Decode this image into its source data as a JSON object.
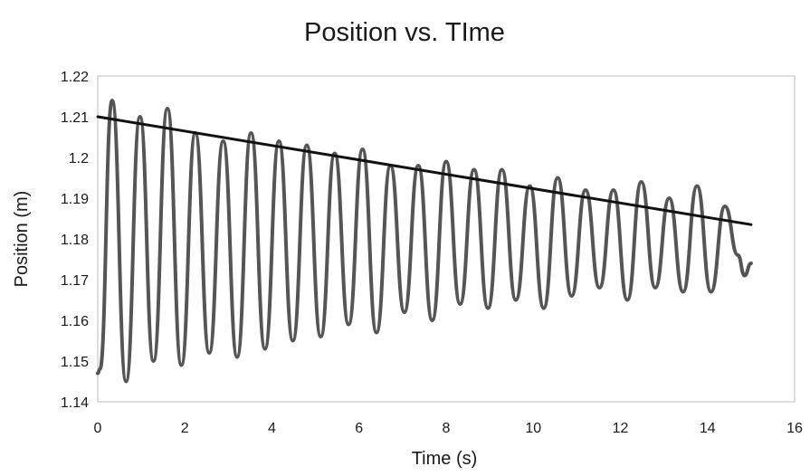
{
  "chart_data": {
    "type": "line",
    "title": "Position vs. TIme",
    "xlabel": "Time (s)",
    "ylabel": "Position (m)",
    "xlim": [
      0,
      16
    ],
    "ylim": [
      1.14,
      1.22
    ],
    "x_ticks": [
      "0",
      "2",
      "4",
      "6",
      "8",
      "10",
      "12",
      "14",
      "16"
    ],
    "y_ticks": [
      "1.14",
      "1.15",
      "1.16",
      "1.17",
      "1.18",
      "1.19",
      "1.2",
      "1.21",
      "1.22"
    ],
    "grid": false,
    "legend": "none",
    "series": [
      {
        "style": "oscillation",
        "color": "#555555",
        "points": [
          [
            0.0,
            1.147
          ],
          [
            0.05,
            1.148
          ],
          [
            0.33,
            1.214
          ],
          [
            0.65,
            1.145
          ],
          [
            0.97,
            1.21
          ],
          [
            1.28,
            1.15
          ],
          [
            1.6,
            1.212
          ],
          [
            1.92,
            1.149
          ],
          [
            2.24,
            1.206
          ],
          [
            2.56,
            1.152
          ],
          [
            2.88,
            1.204
          ],
          [
            3.2,
            1.151
          ],
          [
            3.52,
            1.206
          ],
          [
            3.84,
            1.153
          ],
          [
            4.16,
            1.204
          ],
          [
            4.48,
            1.155
          ],
          [
            4.8,
            1.203
          ],
          [
            5.12,
            1.156
          ],
          [
            5.44,
            1.201
          ],
          [
            5.76,
            1.159
          ],
          [
            6.08,
            1.202
          ],
          [
            6.4,
            1.157
          ],
          [
            6.72,
            1.198
          ],
          [
            7.04,
            1.162
          ],
          [
            7.36,
            1.198
          ],
          [
            7.68,
            1.16
          ],
          [
            8.0,
            1.199
          ],
          [
            8.32,
            1.164
          ],
          [
            8.64,
            1.197
          ],
          [
            8.96,
            1.163
          ],
          [
            9.28,
            1.197
          ],
          [
            9.6,
            1.165
          ],
          [
            9.92,
            1.193
          ],
          [
            10.24,
            1.163
          ],
          [
            10.56,
            1.195
          ],
          [
            10.88,
            1.166
          ],
          [
            11.2,
            1.192
          ],
          [
            11.52,
            1.168
          ],
          [
            11.84,
            1.192
          ],
          [
            12.16,
            1.165
          ],
          [
            12.48,
            1.194
          ],
          [
            12.8,
            1.168
          ],
          [
            13.12,
            1.19
          ],
          [
            13.44,
            1.167
          ],
          [
            13.76,
            1.193
          ],
          [
            14.08,
            1.167
          ],
          [
            14.4,
            1.188
          ],
          [
            14.7,
            1.176
          ],
          [
            14.85,
            1.171
          ],
          [
            15.0,
            1.174
          ]
        ]
      },
      {
        "style": "trendline",
        "color": "#111111",
        "points": [
          [
            0.0,
            1.21
          ],
          [
            15.0,
            1.1835
          ]
        ]
      }
    ]
  }
}
